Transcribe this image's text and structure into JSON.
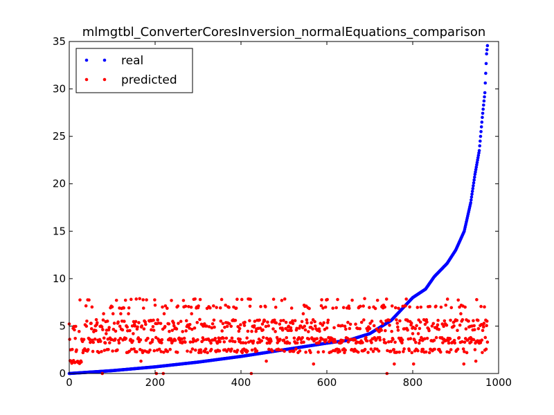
{
  "chart_data": {
    "type": "scatter",
    "title": "mlmgtbl_ConverterCoresInversion_normalEquations_comparison",
    "xlabel": "",
    "ylabel": "",
    "xlim": [
      0,
      1000
    ],
    "ylim": [
      0,
      35
    ],
    "xticks": [
      0,
      200,
      400,
      600,
      800,
      1000
    ],
    "yticks": [
      0,
      5,
      10,
      15,
      20,
      25,
      30,
      35
    ],
    "grid": false,
    "legend_position": "top-left",
    "n_points": 975,
    "series": [
      {
        "name": "real",
        "color": "#0000ff",
        "description_points": [
          [
            0,
            0.0
          ],
          [
            100,
            0.3
          ],
          [
            200,
            0.7
          ],
          [
            300,
            1.2
          ],
          [
            400,
            1.8
          ],
          [
            500,
            2.5
          ],
          [
            600,
            3.2
          ],
          [
            650,
            3.5
          ],
          [
            700,
            4.2
          ],
          [
            750,
            5.6
          ],
          [
            800,
            8.0
          ],
          [
            830,
            8.9
          ],
          [
            850,
            10.2
          ],
          [
            880,
            11.6
          ],
          [
            900,
            13.0
          ],
          [
            920,
            15.0
          ],
          [
            935,
            18.0
          ],
          [
            945,
            21.0
          ],
          [
            955,
            23.5
          ],
          [
            962,
            27.0
          ],
          [
            968,
            29.6
          ],
          [
            972,
            33.7
          ],
          [
            975,
            35.0
          ]
        ]
      },
      {
        "name": "predicted",
        "color": "#ff0000",
        "levels": [
          0.0,
          1.0,
          1.3,
          2.2,
          2.5,
          3.2,
          3.5,
          3.7,
          4.2,
          4.7,
          5.0,
          5.3,
          5.6,
          6.3,
          7.0,
          7.2,
          7.8
        ]
      }
    ]
  }
}
